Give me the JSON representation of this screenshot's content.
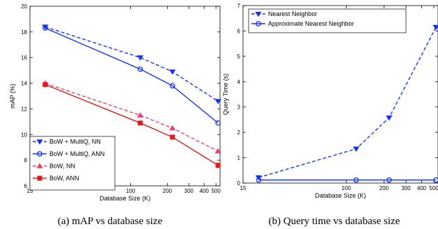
{
  "colors": {
    "blue": "#1a35e8",
    "pink": "#e8436e",
    "red": "#e01b1b"
  },
  "chart_data": [
    {
      "type": "line",
      "caption": "(a)  mAP vs database size",
      "xlabel": "Database Size (K)",
      "ylabel": "mAP (%)",
      "xscale": "log",
      "xlim": [
        15,
        540
      ],
      "ylim": [
        6,
        20
      ],
      "xticks": [
        15,
        100,
        200,
        300,
        400,
        500
      ],
      "yticks": [
        6,
        8,
        10,
        12,
        14,
        16,
        18,
        20
      ],
      "legend_position": "bottom-left",
      "series": [
        {
          "name": "BoW + MultiQ, NN",
          "color": "#1a35e8",
          "dash": true,
          "marker": "triangle-down",
          "x": [
            20,
            120,
            220,
            520
          ],
          "y": [
            18.4,
            16.0,
            14.9,
            12.6
          ]
        },
        {
          "name": "BoW + MultiQ, ANN",
          "color": "#1a35e8",
          "dash": false,
          "marker": "circle",
          "x": [
            20,
            120,
            220,
            520
          ],
          "y": [
            18.3,
            15.1,
            13.8,
            10.9
          ]
        },
        {
          "name": "BoW, NN",
          "color": "#e8436e",
          "dash": true,
          "marker": "triangle-up",
          "x": [
            20,
            120,
            220,
            520
          ],
          "y": [
            14.0,
            11.5,
            10.5,
            8.7
          ]
        },
        {
          "name": "BoW, ANN",
          "color": "#e01b1b",
          "dash": false,
          "marker": "square",
          "x": [
            20,
            120,
            220,
            520
          ],
          "y": [
            13.9,
            10.9,
            9.8,
            7.6
          ]
        }
      ]
    },
    {
      "type": "line",
      "caption": "(b)  Query time vs database size",
      "xlabel": "Database Size (K)",
      "ylabel": "Query Time (s)",
      "xscale": "log",
      "xlim": [
        15,
        540
      ],
      "ylim": [
        0,
        7
      ],
      "xticks": [
        15,
        100,
        200,
        300,
        400,
        500
      ],
      "yticks": [
        0,
        1,
        2,
        3,
        4,
        5,
        6,
        7
      ],
      "legend_position": "top-left",
      "series": [
        {
          "name": "Nearest Neighbor",
          "color": "#1a35e8",
          "dash": true,
          "marker": "triangle-down",
          "x": [
            20,
            120,
            220,
            520
          ],
          "y": [
            0.22,
            1.35,
            2.58,
            6.15
          ]
        },
        {
          "name": "Approximate Nearest Neighbor",
          "color": "#1a35e8",
          "dash": false,
          "marker": "circle",
          "x": [
            20,
            120,
            220,
            520
          ],
          "y": [
            0.12,
            0.12,
            0.12,
            0.12
          ]
        }
      ]
    }
  ]
}
